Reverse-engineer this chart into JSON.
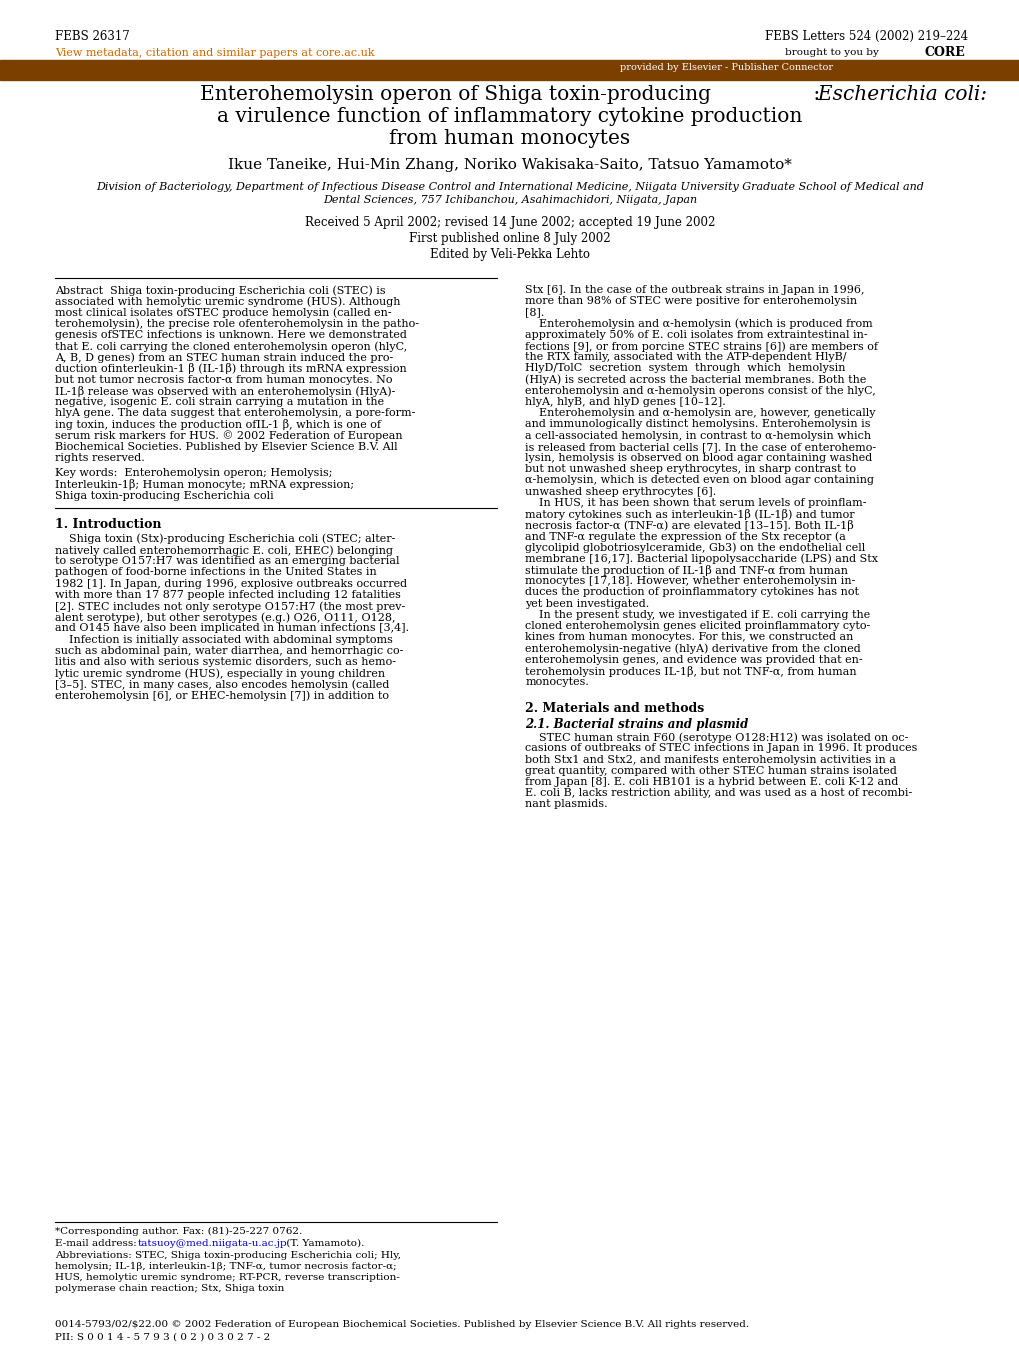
{
  "febs_left": "FEBS 26317",
  "febs_right": "FEBS Letters 524 (2002) 219–224",
  "link_text": "View metadata, citation and similar papers at core.ac.uk",
  "elsevier_bar_text": "provided by Elsevier - Publisher Connector",
  "orange_color": "#CC6600",
  "brown_bar_color": "#7B3F00",
  "blue_link_color": "#0000CC",
  "white": "#ffffff",
  "black": "#000000"
}
